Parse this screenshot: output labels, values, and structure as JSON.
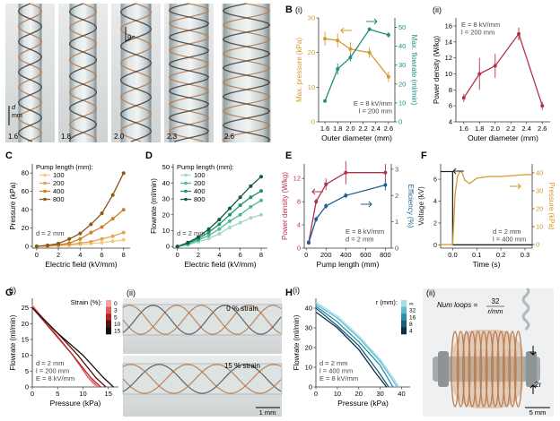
{
  "panel_letters": {
    "A": "A",
    "B": "B",
    "C": "C",
    "D": "D",
    "E": "E",
    "F": "F",
    "G": "G",
    "H": "H"
  },
  "panelA": {
    "tube_labels": [
      "1.6",
      "1.8",
      "2.0",
      "2.3",
      "2.6"
    ],
    "scale_label": "d",
    "scale_unit": "mm",
    "angle_label": "θ"
  },
  "chart_data": [
    {
      "panel": "B(i)",
      "type": "line",
      "panel_label": "(i)",
      "x": [
        1.6,
        1.8,
        2.0,
        2.3,
        2.6
      ],
      "xlabel": "Outer diameter (mm)",
      "xlim": [
        1.5,
        2.7
      ],
      "xticks": [
        "1.6",
        "1.8",
        "2.0",
        "2.2",
        "2.4",
        "2.6"
      ],
      "series": [
        {
          "name": "Max. pressure (kPa)",
          "axis": "left",
          "color": "#d39b33",
          "values": [
            24,
            23.5,
            21,
            20,
            13
          ],
          "err": [
            2,
            2,
            2,
            1.5,
            1.5
          ]
        },
        {
          "name": "Max. flowrate (ml/min)",
          "axis": "right",
          "color": "#1f8f7e",
          "values": [
            11,
            28,
            34,
            49,
            46
          ],
          "err": [
            0,
            3,
            2,
            1,
            1.5
          ]
        }
      ],
      "ylabel_left": "Max. pressure (kPa)",
      "ylim_left": [
        0,
        30
      ],
      "yticks_left": [
        "0",
        "10",
        "20",
        "30"
      ],
      "ylabel_right": "Max. flowrate (ml/min)",
      "ylim_right": [
        0,
        55
      ],
      "yticks_right": [
        "0",
        "10",
        "20",
        "30",
        "40",
        "50"
      ],
      "annotations": [
        "E = 8 kV/mm",
        "l = 200 mm"
      ]
    },
    {
      "panel": "B(ii)",
      "type": "line",
      "panel_label": "(ii)",
      "x": [
        1.6,
        1.8,
        2.0,
        2.3,
        2.6
      ],
      "xlabel": "Outer diameter (mm)",
      "xlim": [
        1.5,
        2.7
      ],
      "xticks": [
        "1.6",
        "1.8",
        "2.0",
        "2.2",
        "2.4",
        "2.6"
      ],
      "series": [
        {
          "name": "",
          "color": "#b3324b",
          "values": [
            7,
            10,
            11,
            15,
            6
          ],
          "err": [
            0.5,
            2,
            1.5,
            0.8,
            0.5
          ]
        }
      ],
      "ylabel": "Power density (W/kg)",
      "ylim": [
        4,
        17
      ],
      "yticks": [
        "4",
        "6",
        "8",
        "10",
        "12",
        "14",
        "16"
      ],
      "annotations": [
        "E = 8 kV/mm",
        "l = 200 mm"
      ]
    },
    {
      "panel": "C",
      "type": "line",
      "x": [
        0,
        1,
        2,
        3,
        4,
        5,
        6,
        7,
        8
      ],
      "xlabel": "Electric field (kV/mm)",
      "xlim": [
        -0.4,
        8.6
      ],
      "xticks": [
        "0",
        "2",
        "4",
        "6",
        "8"
      ],
      "ylabel": "Pressure (kPa)",
      "ylim": [
        -2,
        90
      ],
      "yticks": [
        "0",
        "20",
        "40",
        "60",
        "80"
      ],
      "legend_title": "Pump length (mm):",
      "legend_position": "top-left",
      "series": [
        {
          "name": "100",
          "color": "#f1c98b",
          "values": [
            0,
            0.2,
            0.5,
            1,
            2,
            3,
            4,
            5.5,
            7
          ]
        },
        {
          "name": "200",
          "color": "#e2a452",
          "values": [
            0,
            0.3,
            1,
            2,
            3.5,
            5,
            8,
            11,
            15
          ]
        },
        {
          "name": "400",
          "color": "#c98123",
          "values": [
            0,
            0.5,
            1.5,
            3.5,
            8,
            15,
            21,
            30,
            40
          ]
        },
        {
          "name": "800",
          "color": "#8a5716",
          "values": [
            0,
            1,
            3,
            8,
            14,
            24,
            36,
            56,
            80
          ]
        }
      ],
      "annotations": [
        "d = 2 mm"
      ]
    },
    {
      "panel": "D",
      "type": "line",
      "x": [
        0,
        1,
        2,
        3,
        4,
        5,
        6,
        7,
        8
      ],
      "xlabel": "Electric field (kV/mm)",
      "xlim": [
        -0.4,
        8.6
      ],
      "xticks": [
        "0",
        "2",
        "4",
        "6",
        "8"
      ],
      "ylabel": "Flowrate (ml/min)",
      "ylim": [
        -1,
        52
      ],
      "yticks": [
        "0",
        "10",
        "20",
        "30",
        "40",
        "50"
      ],
      "legend_title": "Pump length (mm):",
      "legend_position": "top-left",
      "series": [
        {
          "name": "100",
          "color": "#9fd8c6",
          "values": [
            0,
            1,
            3,
            5,
            8,
            12,
            15,
            18,
            20
          ]
        },
        {
          "name": "200",
          "color": "#4fb89c",
          "values": [
            0,
            1.5,
            4,
            7,
            11,
            16,
            20,
            25,
            29
          ]
        },
        {
          "name": "400",
          "color": "#23906f",
          "values": [
            0,
            2,
            5,
            9,
            14,
            20,
            26,
            31,
            35
          ]
        },
        {
          "name": "800",
          "color": "#0f5a40",
          "values": [
            0,
            2.5,
            6,
            11,
            17,
            24,
            31,
            38,
            44
          ]
        }
      ],
      "annotations": [
        "d = 2 mm"
      ]
    },
    {
      "panel": "E",
      "type": "line",
      "x": [
        25,
        100,
        200,
        400,
        800
      ],
      "xlabel": "Pump length (mm)",
      "xlim": [
        -20,
        860
      ],
      "xticks": [
        "0",
        "200",
        "400",
        "600",
        "800"
      ],
      "series": [
        {
          "name": "Power density (W/kg)",
          "axis": "left",
          "color": "#b3324b",
          "values": [
            1,
            8,
            11,
            13,
            13
          ],
          "err": [
            0.3,
            0.5,
            1,
            2,
            1.5
          ]
        },
        {
          "name": "Efficiency (%)",
          "axis": "right",
          "color": "#1e5f91",
          "values": [
            0.2,
            1.1,
            1.6,
            2.0,
            2.4
          ],
          "err": [
            0.05,
            0.1,
            0.1,
            0.1,
            0.2
          ]
        }
      ],
      "ylabel_left": "Power density (W/kg)",
      "ylim_left": [
        0,
        14.5
      ],
      "yticks_left": [
        "0",
        "4",
        "8",
        "12"
      ],
      "ylabel_right": "Efficiency (%)",
      "ylim_right": [
        0,
        3.2
      ],
      "yticks_right": [
        "0",
        "1",
        "2",
        "3"
      ],
      "annotations": [
        "E = 8 kV/mm",
        "d = 2 mm"
      ]
    },
    {
      "panel": "F",
      "type": "line",
      "xlabel": "Time (s)",
      "xlim": [
        -0.05,
        0.33
      ],
      "xticks": [
        "0.0",
        "0.1",
        "0.2",
        "0.3"
      ],
      "ylabel_left": "Voltage (kV)",
      "ylim_left": [
        -0.3,
        7.4
      ],
      "yticks_left": [
        "0",
        "2",
        "4",
        "6"
      ],
      "ylabel_right": "Pressure (kPa)",
      "ylim_right": [
        -2,
        45
      ],
      "yticks_right": [
        "0",
        "10",
        "20",
        "30",
        "40"
      ],
      "series": [
        {
          "name": "Voltage (kV)",
          "axis": "left",
          "color": "#222222",
          "x": [
            -0.05,
            0.0,
            0.0,
            0.33
          ],
          "values": [
            6.7,
            6.7,
            0,
            0
          ]
        },
        {
          "name": "Pressure (kPa)",
          "axis": "right",
          "color": "#d4982d",
          "x": [
            -0.05,
            0.0,
            0.01,
            0.02,
            0.03,
            0.04,
            0.05,
            0.07,
            0.1,
            0.15,
            0.2,
            0.25,
            0.3,
            0.33
          ],
          "values": [
            0,
            0,
            28,
            38,
            41,
            40,
            36,
            34,
            37,
            38,
            38,
            38.5,
            39,
            39
          ]
        }
      ],
      "annotations": [
        "d = 2 mm",
        "l = 400 mm"
      ]
    },
    {
      "panel": "G(i)",
      "type": "line",
      "panel_label": "(i)",
      "xlabel": "Pressure (kPa)",
      "xlim": [
        0,
        17
      ],
      "xticks": [
        "0",
        "5",
        "10",
        "15"
      ],
      "ylabel": "Flowrate (ml/min)",
      "ylim": [
        0,
        28
      ],
      "yticks": [
        "0",
        "5",
        "10",
        "15",
        "20",
        "25"
      ],
      "legend_title": "Strain (%):",
      "legend_items": [
        "0",
        "3",
        "5",
        "10",
        "15"
      ],
      "series": [
        {
          "name": "0",
          "color": "#f4a3a3",
          "x": [
            0,
            4,
            8,
            11,
            12.5
          ],
          "values": [
            26,
            18,
            10,
            3,
            0
          ]
        },
        {
          "name": "3",
          "color": "#e05d5d",
          "x": [
            0,
            4,
            8,
            11,
            13
          ],
          "values": [
            25.5,
            18,
            10,
            3,
            0
          ]
        },
        {
          "name": "5",
          "color": "#b3242a",
          "x": [
            0,
            4,
            8,
            11.5,
            13.5
          ],
          "values": [
            25,
            17.5,
            10,
            3,
            0
          ]
        },
        {
          "name": "10",
          "color": "#5a1012",
          "x": [
            0,
            5,
            9,
            12.5,
            14.5
          ],
          "values": [
            25,
            17,
            10,
            3,
            0
          ]
        },
        {
          "name": "15",
          "color": "#111111",
          "x": [
            0,
            5,
            10,
            14,
            16
          ],
          "values": [
            25,
            17,
            10,
            3,
            0
          ]
        }
      ],
      "annotations": [
        "d = 2 mm",
        "l = 200 mm",
        "E = 8 kV/mm"
      ]
    },
    {
      "panel": "H(i)",
      "type": "line",
      "panel_label": "(i)",
      "xlabel": "Pressure (kPa)",
      "xlim": [
        0,
        44
      ],
      "xticks": [
        "0",
        "10",
        "20",
        "30",
        "40"
      ],
      "ylabel": "Flowrate (ml/min)",
      "ylim": [
        0,
        45
      ],
      "yticks": [
        "0",
        "10",
        "20",
        "30",
        "40"
      ],
      "legend_title": "r (mm):",
      "legend_items": [
        "∞",
        "32",
        "16",
        "8",
        "4"
      ],
      "series": [
        {
          "name": "∞",
          "color": "#a6dde9",
          "x": [
            0,
            10,
            20,
            30,
            39
          ],
          "values": [
            43,
            36,
            26,
            14,
            0
          ]
        },
        {
          "name": "32",
          "color": "#5cbcd0",
          "x": [
            0,
            10,
            20,
            30,
            38
          ],
          "values": [
            42,
            35,
            25,
            13,
            0
          ]
        },
        {
          "name": "16",
          "color": "#2b8fa8",
          "x": [
            0,
            10,
            20,
            30,
            36
          ],
          "values": [
            41,
            33,
            23,
            11,
            0
          ]
        },
        {
          "name": "8",
          "color": "#175f76",
          "x": [
            0,
            10,
            20,
            29,
            34
          ],
          "values": [
            40,
            31,
            21,
            8,
            0
          ]
        },
        {
          "name": "4",
          "color": "#0b2f43",
          "x": [
            0,
            10,
            20,
            28,
            33
          ],
          "values": [
            38,
            30,
            19,
            7,
            0
          ]
        }
      ],
      "annotations": [
        "d = 2 mm",
        "l = 400 mm",
        "E = 8 kV/mm"
      ]
    }
  ],
  "panelG2": {
    "label": "(ii)",
    "top_caption": "0 % strain",
    "bottom_caption": "15 % strain",
    "scale": "1 mm"
  },
  "panelH2": {
    "label": "(ii)",
    "formula_lhs": "Num loops =",
    "formula_num": "32",
    "formula_den": "r/mm",
    "arrow_label": "2r",
    "scale": "5 mm"
  },
  "colors": {
    "copper": "#b97a4a",
    "tube": "#cfd6d8",
    "tube_dark": "#8f9a9c"
  }
}
